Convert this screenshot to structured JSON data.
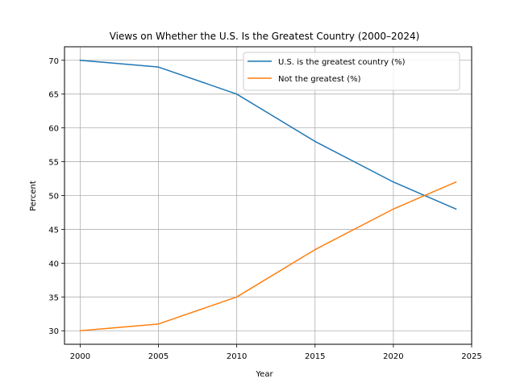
{
  "chart_data": {
    "type": "line",
    "title": "Views on Whether the U.S. Is the Greatest Country (2000–2024)",
    "xlabel": "Year",
    "ylabel": "Percent",
    "x": [
      2000,
      2005,
      2010,
      2015,
      2020,
      2024
    ],
    "xlim": [
      1999,
      2025
    ],
    "ylim": [
      28,
      72
    ],
    "xticks": [
      2000,
      2005,
      2010,
      2015,
      2020,
      2025
    ],
    "yticks": [
      30,
      35,
      40,
      45,
      50,
      55,
      60,
      65,
      70
    ],
    "grid": true,
    "legend_position": "top-right",
    "series": [
      {
        "name": "U.S. is the greatest country (%)",
        "values": [
          70,
          69,
          65,
          58,
          52,
          48
        ],
        "color": "#1f77b4"
      },
      {
        "name": "Not the greatest (%)",
        "values": [
          30,
          31,
          35,
          42,
          48,
          52
        ],
        "color": "#ff7f0e"
      }
    ]
  }
}
